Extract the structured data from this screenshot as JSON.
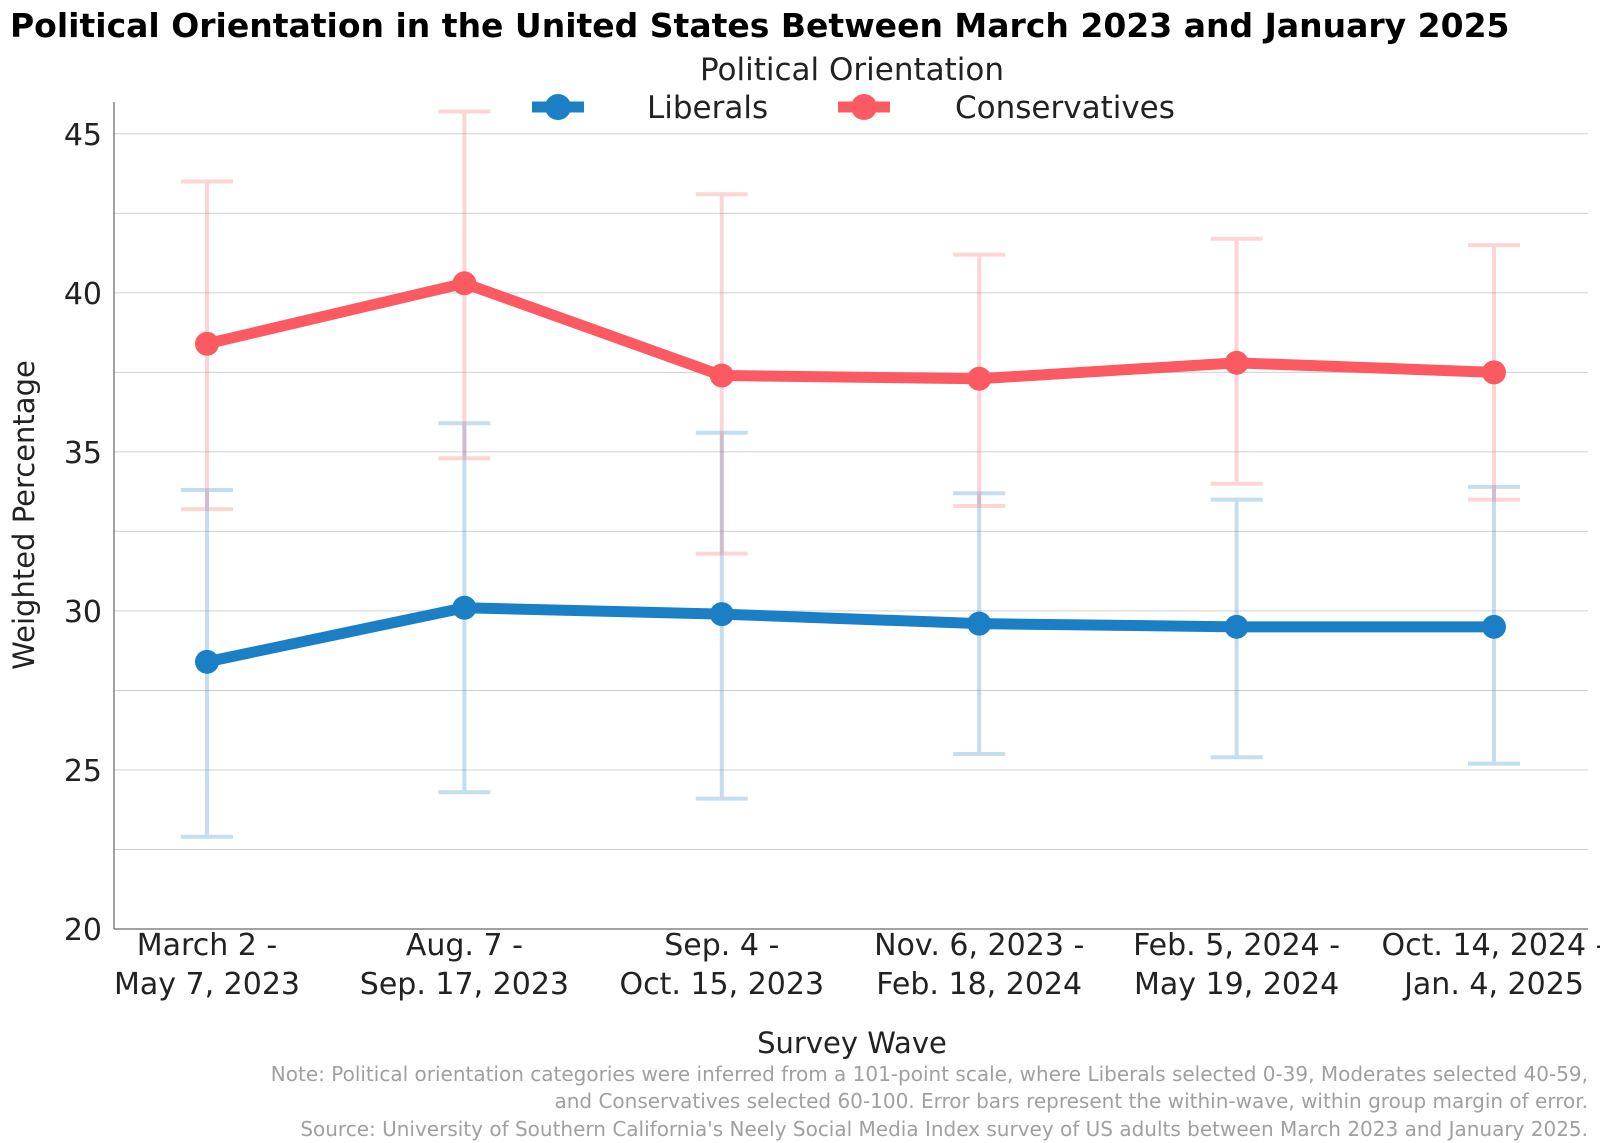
{
  "chart_data": {
    "type": "line",
    "title": "Political Orientation in the United States Between March 2023 and January 2025",
    "legend": {
      "title": "Political Orientation",
      "placement": "top-center",
      "orientation": "horizontal"
    },
    "xlabel": "Survey Wave",
    "ylabel": "Weighted Percentage",
    "ylim": [
      20,
      46
    ],
    "yticks": [
      20,
      25,
      30,
      35,
      40,
      45
    ],
    "grid": true,
    "categories": [
      [
        "March 2 -",
        "May 7, 2023"
      ],
      [
        "Aug. 7 -",
        "Sep. 17, 2023"
      ],
      [
        "Sep. 4 -",
        "Oct. 15, 2023"
      ],
      [
        "Nov. 6, 2023 -",
        "Feb. 18, 2024"
      ],
      [
        "Feb. 5, 2024 -",
        "May 19, 2024"
      ],
      [
        "Oct. 14, 2024 -",
        "Jan. 4, 2025"
      ]
    ],
    "series": [
      {
        "name": "Liberals",
        "color": "#1a7fc4",
        "values": [
          28.4,
          30.1,
          29.9,
          29.6,
          29.5,
          29.5
        ],
        "error_low": [
          22.9,
          24.3,
          24.1,
          25.5,
          25.4,
          25.2
        ],
        "error_high": [
          33.8,
          35.9,
          35.6,
          33.7,
          33.5,
          33.9
        ]
      },
      {
        "name": "Conservatives",
        "color": "#fb5a62",
        "values": [
          38.4,
          40.3,
          37.4,
          37.3,
          37.8,
          37.5
        ],
        "error_low": [
          33.2,
          34.8,
          31.8,
          33.3,
          34.0,
          33.5
        ],
        "error_high": [
          43.5,
          45.7,
          43.1,
          41.2,
          41.7,
          41.5
        ]
      }
    ],
    "notes": [
      "Note: Political orientation categories were inferred from a 101-point scale, where Liberals selected 0-39, Moderates selected 40-59,",
      "and Conservatives selected 60-100. Error bars represent the within-wave, within group margin of error.",
      "Source: University of Southern California's Neely Social Media Index survey of US adults between March 2023 and January 2025."
    ]
  }
}
